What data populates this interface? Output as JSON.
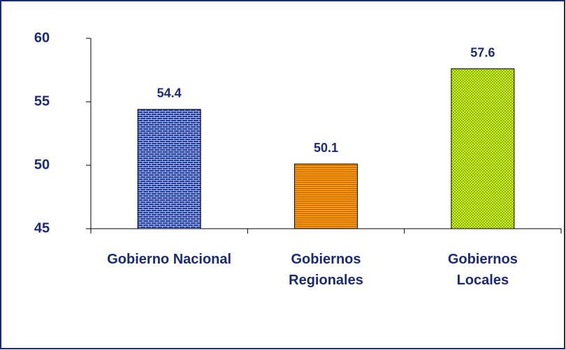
{
  "chart_data": {
    "type": "bar",
    "categories": [
      "Gobierno Nacional",
      "Gobiernos\nRegionales",
      "Gobiernos\nLocales"
    ],
    "values": [
      54.4,
      50.1,
      57.6
    ],
    "colors": [
      "#1f3a9e",
      "#ff9a00",
      "#ccff00"
    ],
    "ylim": [
      45,
      60
    ],
    "yticks": [
      45,
      50,
      55,
      60
    ],
    "grid": false
  }
}
